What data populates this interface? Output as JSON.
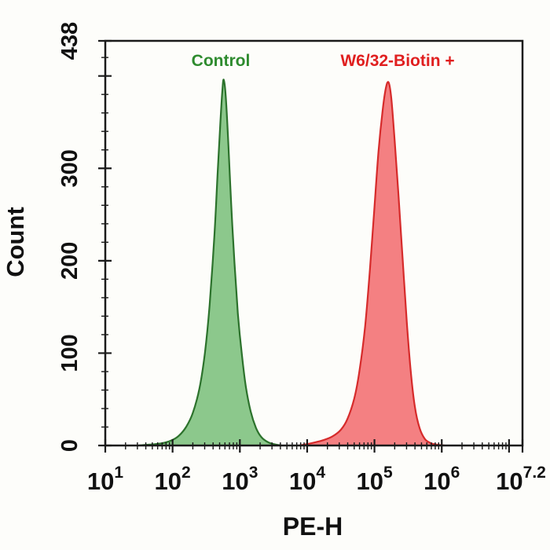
{
  "figure": {
    "background": "#fdfdfa",
    "axis_color": "#1a1a1a",
    "tick_label_color": "#111111"
  },
  "chart_data": {
    "type": "area",
    "subtype": "flow-cytometry-histogram",
    "title": "",
    "xlabel": "PE-H",
    "ylabel": "Count",
    "x_scale": "log10",
    "x_log_range": [
      1,
      7.2
    ],
    "ylim": [
      0,
      438
    ],
    "grid": false,
    "legend_position": "above-peaks",
    "y_ticks_labeled": [
      {
        "value": 0,
        "label": "0"
      },
      {
        "value": 100,
        "label": "100"
      },
      {
        "value": 200,
        "label": "200"
      },
      {
        "value": 300,
        "label": "300"
      },
      {
        "value": 438,
        "label": "438"
      }
    ],
    "y_major_unlabeled": [
      400
    ],
    "y_minor_step": 20,
    "x_ticks": [
      {
        "log": 1,
        "base": "10",
        "exp": "1"
      },
      {
        "log": 2,
        "base": "10",
        "exp": "2"
      },
      {
        "log": 3,
        "base": "10",
        "exp": "3"
      },
      {
        "log": 4,
        "base": "10",
        "exp": "4"
      },
      {
        "log": 5,
        "base": "10",
        "exp": "5"
      },
      {
        "log": 6,
        "base": "10",
        "exp": "6"
      },
      {
        "log": 7,
        "base": null,
        "exp": null
      },
      {
        "log": 7.2,
        "base": "10",
        "exp": "7.2"
      }
    ],
    "series": [
      {
        "name": "Control",
        "label_color": "#2E8B2E",
        "fill": "#8CC88C",
        "stroke": "#2C722C",
        "peak_log10_x": 2.76,
        "peak_count": 396,
        "points": [
          [
            1.5,
            0
          ],
          [
            1.62,
            0.8
          ],
          [
            1.75,
            1.5
          ],
          [
            1.88,
            3
          ],
          [
            2.0,
            6
          ],
          [
            2.1,
            11
          ],
          [
            2.2,
            20
          ],
          [
            2.3,
            35
          ],
          [
            2.4,
            62
          ],
          [
            2.48,
            100
          ],
          [
            2.55,
            152
          ],
          [
            2.62,
            225
          ],
          [
            2.67,
            295
          ],
          [
            2.71,
            350
          ],
          [
            2.74,
            384
          ],
          [
            2.76,
            396
          ],
          [
            2.79,
            378
          ],
          [
            2.83,
            325
          ],
          [
            2.87,
            262
          ],
          [
            2.92,
            198
          ],
          [
            2.97,
            143
          ],
          [
            3.03,
            98
          ],
          [
            3.09,
            63
          ],
          [
            3.16,
            37
          ],
          [
            3.24,
            19
          ],
          [
            3.32,
            9
          ],
          [
            3.42,
            3.5
          ],
          [
            3.52,
            1.2
          ],
          [
            3.62,
            0
          ]
        ]
      },
      {
        "name": "W6/32-Biotin +",
        "label_color": "#E01F1F",
        "fill": "#F48082",
        "stroke": "#D62B2B",
        "peak_log10_x": 5.21,
        "peak_count": 393,
        "points": [
          [
            3.88,
            0
          ],
          [
            4.0,
            1.5
          ],
          [
            4.12,
            3.5
          ],
          [
            4.25,
            6
          ],
          [
            4.38,
            10
          ],
          [
            4.5,
            17
          ],
          [
            4.6,
            29
          ],
          [
            4.7,
            51
          ],
          [
            4.78,
            82
          ],
          [
            4.86,
            128
          ],
          [
            4.93,
            188
          ],
          [
            5.0,
            258
          ],
          [
            5.06,
            318
          ],
          [
            5.12,
            362
          ],
          [
            5.17,
            387
          ],
          [
            5.21,
            393
          ],
          [
            5.25,
            376
          ],
          [
            5.3,
            330
          ],
          [
            5.36,
            268
          ],
          [
            5.42,
            200
          ],
          [
            5.48,
            134
          ],
          [
            5.54,
            80
          ],
          [
            5.6,
            42
          ],
          [
            5.67,
            19
          ],
          [
            5.75,
            7
          ],
          [
            5.84,
            2.5
          ],
          [
            5.94,
            0.8
          ],
          [
            6.04,
            0
          ]
        ]
      }
    ]
  }
}
